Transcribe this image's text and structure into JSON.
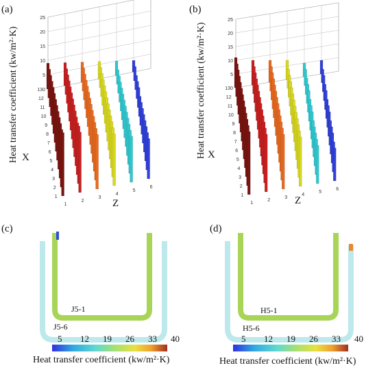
{
  "panels": {
    "a": {
      "letter": "(a)"
    },
    "b": {
      "letter": "(b)"
    },
    "c": {
      "letter": "(c)",
      "inner_label": "J5-1",
      "outer_label": "J5-6"
    },
    "d": {
      "letter": "(d)",
      "inner_label": "H5-1",
      "outer_label": "H5-6"
    }
  },
  "colorbar": {
    "ticks": [
      "5",
      "12",
      "19",
      "26",
      "33",
      "40"
    ],
    "title": "Heat transfer coefficient (kw/m²·K)",
    "colors": [
      "#3030e0",
      "#30a8e0",
      "#60d8d0",
      "#a8e070",
      "#e8e040",
      "#f0a030",
      "#a03020"
    ]
  },
  "chart_data": [
    {
      "type": "bar3d",
      "panel": "a",
      "zlabel": "Heat transfer coefficient (kw/m²·K)",
      "xlabel": "X",
      "ylabel": "Z",
      "z_ticks": [
        "0",
        "5",
        "10",
        "15",
        "20",
        "25"
      ],
      "x_ticks": [
        "1",
        "2",
        "3",
        "4",
        "5",
        "6",
        "7",
        "8",
        "9",
        "10",
        "11",
        "12",
        "13"
      ],
      "y_ticks": [
        "1",
        "2",
        "3",
        "4",
        "5",
        "6"
      ],
      "zlim": [
        0,
        25
      ],
      "grid": true,
      "series": [
        {
          "z": 1,
          "values": [
            22,
            20,
            19,
            18,
            17,
            16,
            15,
            14,
            13,
            12,
            11,
            10,
            9
          ]
        },
        {
          "z": 2,
          "values": [
            21,
            20,
            18,
            17,
            16,
            15,
            14,
            13,
            12,
            11,
            10,
            9,
            8
          ]
        },
        {
          "z": 3,
          "values": [
            19,
            18,
            17,
            16,
            15,
            14,
            13,
            12,
            11,
            10,
            9,
            8,
            7
          ]
        },
        {
          "z": 4,
          "values": [
            18,
            17,
            16,
            15,
            14,
            13,
            12,
            11,
            10,
            9,
            8,
            7,
            6
          ]
        },
        {
          "z": 5,
          "values": [
            16,
            15,
            14,
            13,
            12,
            11,
            10,
            9,
            8,
            7,
            6,
            5,
            5
          ]
        },
        {
          "z": 6,
          "values": [
            14,
            13,
            12,
            11,
            10,
            9,
            8,
            7,
            7,
            6,
            5,
            5,
            4
          ]
        }
      ]
    },
    {
      "type": "bar3d",
      "panel": "b",
      "zlabel": "Heat transfer coefficient (kw/m²·K)",
      "xlabel": "X",
      "ylabel": "Z",
      "z_ticks": [
        "0",
        "5",
        "10",
        "15",
        "20",
        "25"
      ],
      "x_ticks": [
        "1",
        "2",
        "3",
        "4",
        "5",
        "6",
        "7",
        "8",
        "9",
        "10",
        "11",
        "12",
        "13"
      ],
      "y_ticks": [
        "1",
        "2",
        "3",
        "4",
        "5",
        "6"
      ],
      "zlim": [
        0,
        25
      ],
      "grid": true,
      "series": [
        {
          "z": 1,
          "values": [
            23,
            22,
            21,
            20,
            19,
            18,
            17,
            16,
            15,
            14,
            13,
            12,
            11
          ]
        },
        {
          "z": 2,
          "values": [
            21,
            20,
            19,
            18,
            17,
            16,
            15,
            14,
            13,
            12,
            11,
            10,
            9
          ]
        },
        {
          "z": 3,
          "values": [
            20,
            19,
            18,
            17,
            16,
            15,
            14,
            13,
            12,
            11,
            10,
            9,
            8
          ]
        },
        {
          "z": 4,
          "values": [
            18,
            17,
            16,
            15,
            14,
            13,
            12,
            11,
            10,
            9,
            8,
            7,
            7
          ]
        },
        {
          "z": 5,
          "values": [
            14,
            13,
            12,
            11,
            10,
            10,
            9,
            8,
            8,
            7,
            6,
            6,
            5
          ]
        },
        {
          "z": 6,
          "values": [
            12,
            11,
            11,
            10,
            9,
            9,
            8,
            7,
            7,
            6,
            6,
            5,
            5
          ]
        }
      ]
    }
  ]
}
